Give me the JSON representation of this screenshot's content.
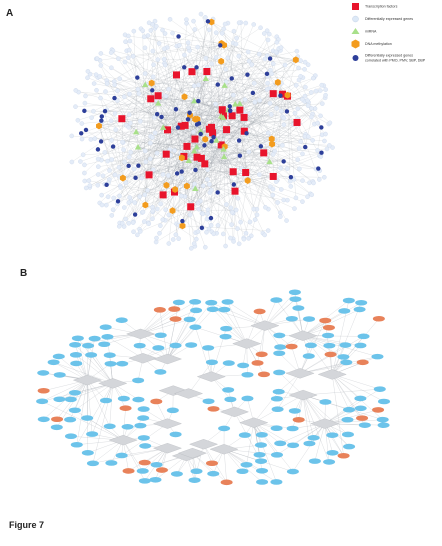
{
  "panel_a": {
    "label": "A",
    "legend": [
      "Transcription factors",
      "Differentially expressed genes",
      "miRNA",
      "DNA methylation",
      [
        "Differentially expressed genes",
        "correlated with PMO, PMV, SBP, DBP"
      ]
    ]
  },
  "panel_b": {
    "label": "B"
  },
  "caption": "Figure 7"
}
